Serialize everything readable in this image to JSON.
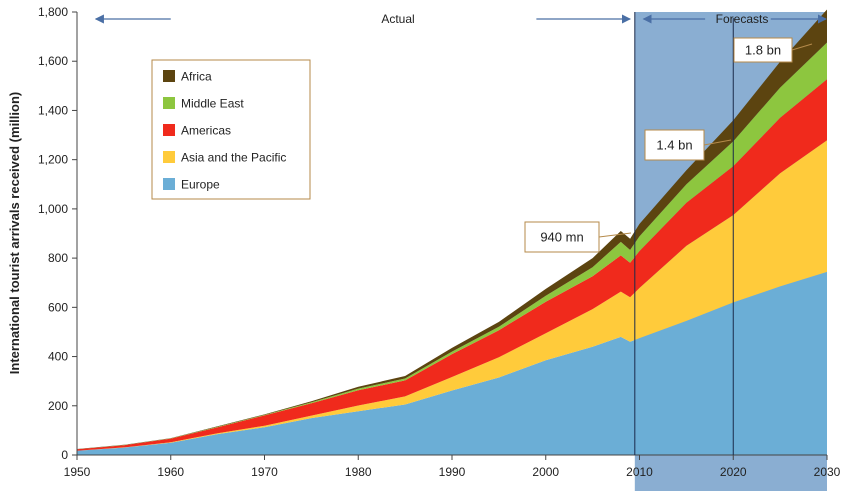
{
  "chart_data": {
    "type": "area",
    "stacked": true,
    "ylabel": "International tourist arrivals received (million)",
    "xlim": [
      1950,
      2030
    ],
    "ylim": [
      0,
      1800
    ],
    "x_ticks": [
      1950,
      1960,
      1970,
      1980,
      1990,
      2000,
      2010,
      2020,
      2030
    ],
    "y_ticks": [
      0,
      200,
      400,
      600,
      800,
      1000,
      1200,
      1400,
      1600,
      1800
    ],
    "y_tick_labels": [
      "0",
      "200",
      "400",
      "600",
      "800",
      "1,000",
      "1,200",
      "1,400",
      "1,600",
      "1,800"
    ],
    "grid": false,
    "legend_position": "top-left",
    "x": [
      1950,
      1955,
      1960,
      1965,
      1970,
      1975,
      1980,
      1985,
      1990,
      1995,
      2000,
      2005,
      2008,
      2009,
      2010,
      2015,
      2020,
      2025,
      2030
    ],
    "series": [
      {
        "name": "Europe",
        "color": "#6baed6",
        "values": [
          17,
          30,
          50,
          85,
          113,
          150,
          178,
          205,
          262,
          315,
          385,
          440,
          480,
          460,
          475,
          545,
          620,
          685,
          744
        ]
      },
      {
        "name": "Asia and the Pacific",
        "color": "#ffcb3b",
        "values": [
          0.5,
          1,
          1.5,
          3,
          6,
          10,
          23,
          33,
          55,
          82,
          110,
          153,
          184,
          181,
          204,
          305,
          355,
          460,
          535
        ]
      },
      {
        "name": "Americas",
        "color": "#f02a1c",
        "values": [
          6,
          9,
          15,
          25,
          42,
          50,
          62,
          65,
          93,
          110,
          128,
          133,
          147,
          140,
          150,
          175,
          199,
          225,
          248
        ]
      },
      {
        "name": "Middle East",
        "color": "#8dc63f",
        "values": [
          0.2,
          0.5,
          1,
          2,
          2,
          4,
          7,
          8,
          10,
          14,
          24,
          37,
          55,
          52,
          60,
          75,
          101,
          123,
          149
        ]
      },
      {
        "name": "Africa",
        "color": "#5c4410",
        "values": [
          0.5,
          1,
          1,
          2,
          2,
          4,
          7,
          10,
          15,
          20,
          28,
          37,
          44,
          46,
          50,
          57,
          85,
          105,
          134
        ]
      }
    ],
    "periods": [
      {
        "label": "Actual",
        "from": 1952,
        "to": 2009
      },
      {
        "label": "Forecasts",
        "from": 2010,
        "to": 2030
      }
    ],
    "forecast_shade": {
      "from": 2009.5,
      "to": 2030,
      "color": "#8aaed2"
    },
    "annotations": [
      {
        "label": "940 mn",
        "x": 2009.5,
        "y": 940
      },
      {
        "label": "1.4 bn",
        "x": 2020,
        "y": 1360
      },
      {
        "label": "1.8 bn",
        "x": 2030,
        "y": 1800
      }
    ]
  }
}
